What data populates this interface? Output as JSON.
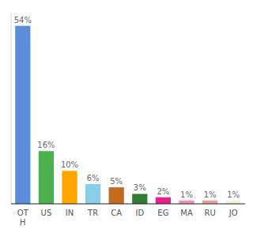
{
  "chart_data": {
    "type": "bar",
    "categories": [
      "OT\nH",
      "US",
      "IN",
      "TR",
      "CA",
      "ID",
      "EG",
      "MA",
      "RU",
      "JO"
    ],
    "values": [
      54,
      16,
      10,
      6,
      5,
      3,
      2,
      1,
      1,
      1
    ],
    "value_labels": [
      "54%",
      "16%",
      "10%",
      "6%",
      "5%",
      "3%",
      "2%",
      "1%",
      "1%",
      "1%"
    ],
    "colors": [
      "#5b8dd9",
      "#4caf50",
      "#ffa500",
      "#87ceeb",
      "#c46a1f",
      "#2e7d32",
      "#e91e8c",
      "#f48fb1",
      "#ef9a9a",
      "#f5f5dc"
    ],
    "ylim": [
      0,
      58
    ],
    "grid": false,
    "data_labels": true,
    "tick_labels": "x"
  }
}
